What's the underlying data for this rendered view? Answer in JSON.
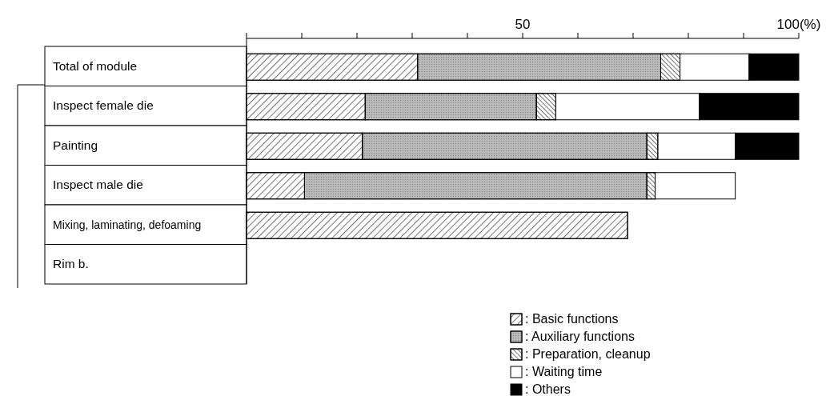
{
  "chart_data": {
    "type": "bar",
    "orientation": "horizontal",
    "stacked": true,
    "categories": [
      "Total of module",
      "Inspect female die",
      "Painting",
      "Inspect male die",
      "Mixing, laminating, defoaming",
      "Rim b."
    ],
    "series": [
      {
        "name": ": Basic functions",
        "color": "#ffffff",
        "values": [
          31,
          21.5,
          21,
          10.5,
          69,
          null
        ]
      },
      {
        "name": ": Auxiliary functions",
        "color": "#b4b4b4",
        "values": [
          44,
          31,
          51.5,
          62,
          null,
          null
        ]
      },
      {
        "name": ": Preparation, cleanup",
        "color": "#ffffff",
        "values": [
          3.5,
          3.5,
          2,
          1.5,
          null,
          null
        ]
      },
      {
        "name": ": Waiting time",
        "color": "#ffffff",
        "values": [
          12.5,
          26,
          14,
          14.5,
          null,
          null
        ]
      },
      {
        "name": ": Others",
        "color": "#000000",
        "values": [
          9,
          18,
          11.5,
          null,
          null,
          null
        ]
      }
    ],
    "xlim": [
      0,
      100
    ],
    "xticks": [
      {
        "value": 0,
        "label": null
      },
      {
        "value": 10,
        "label": null
      },
      {
        "value": 20,
        "label": null
      },
      {
        "value": 30,
        "label": null
      },
      {
        "value": 40,
        "label": null
      },
      50,
      {
        "value": 60,
        "label": null
      },
      {
        "value": 70,
        "label": null
      },
      {
        "value": 80,
        "label": null
      },
      {
        "value": 90,
        "label": null
      },
      {
        "value": 100,
        "label": "100(%)"
      }
    ],
    "legend": "bottom right"
  }
}
